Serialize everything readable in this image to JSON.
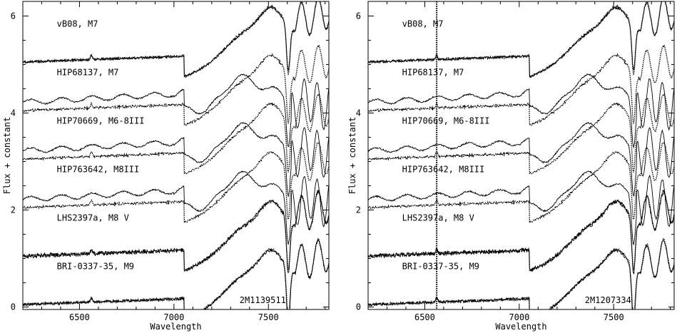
{
  "chart_data": [
    {
      "type": "line",
      "object": "2M1139511",
      "xlabel": "Wavelength",
      "ylabel": "Flux + constant",
      "xlim": [
        6200,
        7820
      ],
      "ylim": [
        -0.05,
        6.3
      ],
      "xticks": [
        6500,
        7000,
        7500
      ],
      "yticks": [
        0,
        2,
        4,
        6
      ],
      "grid": false,
      "vertical_marker": null,
      "series": [
        {
          "label": "vB08, M7",
          "offset": 5.0,
          "template": "m7"
        },
        {
          "label": "HIP68137, M7",
          "offset": 4.0,
          "template": "giant"
        },
        {
          "label": "HIP70669, M6-8III",
          "offset": 3.0,
          "template": "giant"
        },
        {
          "label": "HIP763642, M8III",
          "offset": 2.0,
          "template": "giant"
        },
        {
          "label": "LHS2397a, M8 V",
          "offset": 1.0,
          "template": "m8"
        },
        {
          "label": "BRI-0337-35, M9",
          "offset": 0.0,
          "template": "m9"
        }
      ]
    },
    {
      "type": "line",
      "object": "2M1207334",
      "xlabel": "Wavelength",
      "ylabel": "Flux + constant",
      "xlim": [
        6200,
        7820
      ],
      "ylim": [
        -0.05,
        6.3
      ],
      "xticks": [
        6500,
        7000,
        7500
      ],
      "yticks": [
        0,
        2,
        4,
        6
      ],
      "grid": false,
      "vertical_marker": 6563,
      "series": [
        {
          "label": "vB08, M7",
          "offset": 5.0,
          "template": "m7"
        },
        {
          "label": "HIP68137, M7",
          "offset": 4.0,
          "template": "giant"
        },
        {
          "label": "HIP70669, M6-8III",
          "offset": 3.0,
          "template": "giant"
        },
        {
          "label": "HIP763642, M8III",
          "offset": 2.0,
          "template": "giant"
        },
        {
          "label": "LHS2397a, M8 V",
          "offset": 1.0,
          "template": "m8"
        },
        {
          "label": "BRI-0337-35, M9",
          "offset": 0.0,
          "template": "m9"
        }
      ]
    }
  ]
}
